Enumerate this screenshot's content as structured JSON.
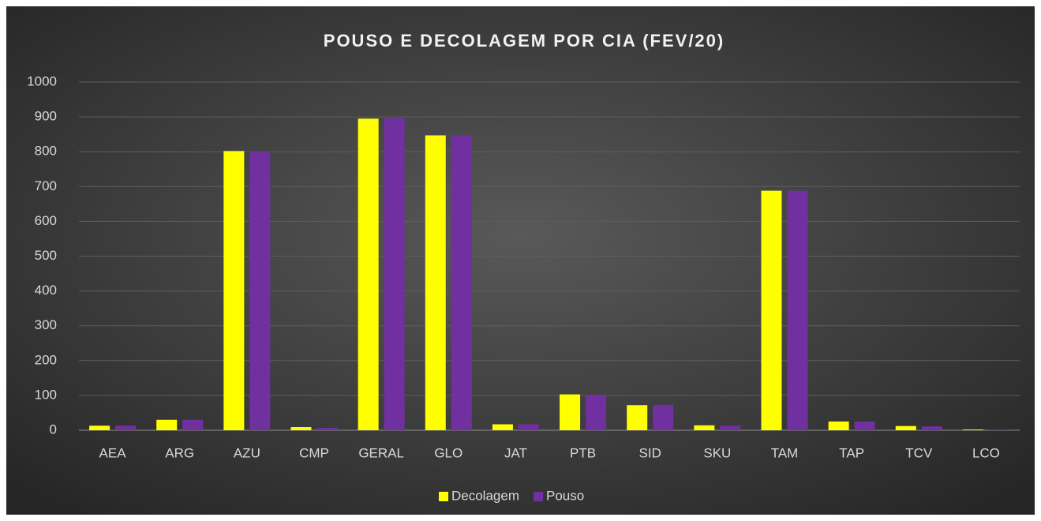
{
  "chart_data": {
    "type": "bar",
    "title": "POUSO E DECOLAGEM POR CIA (FEV/20)",
    "categories": [
      "AEA",
      "ARG",
      "AZU",
      "CMP",
      "GERAL",
      "GLO",
      "JAT",
      "PTB",
      "SID",
      "SKU",
      "TAM",
      "TAP",
      "TCV",
      "LCO"
    ],
    "series": [
      {
        "name": "Decolagem",
        "color": "#ffff00",
        "values": [
          13,
          30,
          802,
          9,
          895,
          847,
          17,
          103,
          72,
          14,
          688,
          25,
          12,
          2
        ]
      },
      {
        "name": "Pouso",
        "color": "#7030a0",
        "values": [
          13,
          30,
          800,
          7,
          897,
          847,
          17,
          102,
          73,
          13,
          688,
          25,
          11,
          2
        ]
      }
    ],
    "ylim": [
      0,
      1000
    ],
    "yticks": [
      0,
      100,
      200,
      300,
      400,
      500,
      600,
      700,
      800,
      900,
      1000
    ],
    "grid": true,
    "legend": "bottom"
  }
}
